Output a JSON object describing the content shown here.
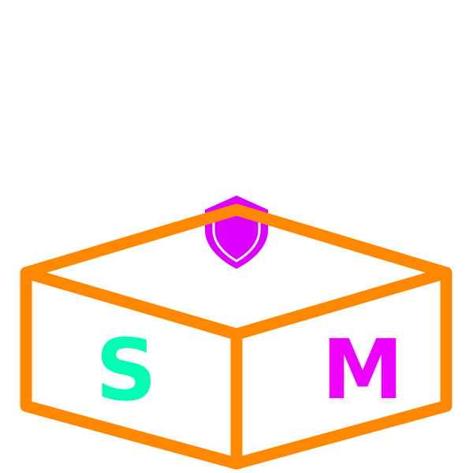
{
  "logo": {
    "left_letter": "S",
    "right_letter": "M",
    "colors": {
      "box_outline": "#ff8800",
      "left_letter": "#00ffb3",
      "right_letter": "#ee00ff",
      "shield_fill": "#dd00ff",
      "shield_inner_line": "#ffffff",
      "background": "#ffffff"
    },
    "icons": {
      "box": "open-box-icon",
      "shield": "shield-icon"
    }
  }
}
